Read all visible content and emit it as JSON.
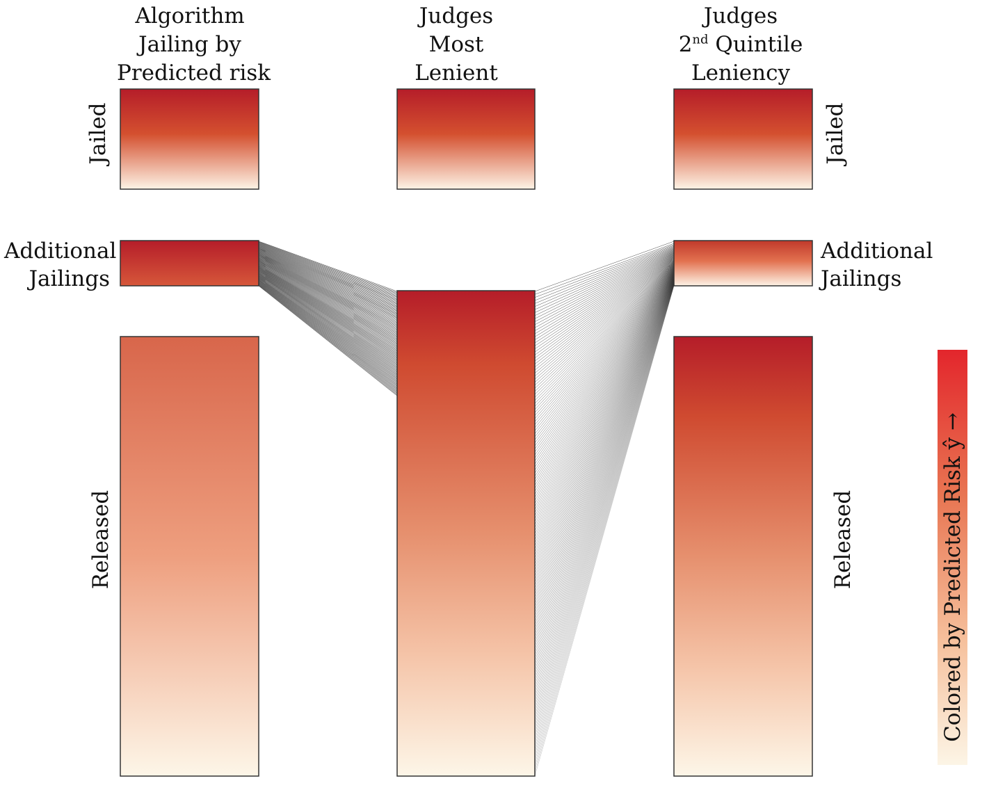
{
  "columns": [
    {
      "title_lines": [
        "Algorithm",
        "Jailing by",
        "Predicted risk"
      ]
    },
    {
      "title_lines": [
        "Judges",
        "Most",
        "Lenient"
      ]
    },
    {
      "title_main": "Judges",
      "title_ordinal": "2",
      "title_ordinal_suffix": "nd",
      "title_rest": "Quintile",
      "title_last": "Leniency"
    }
  ],
  "labels": {
    "jailed_left": "Jailed",
    "jailed_right": "Jailed",
    "additional_left_1": "Additional",
    "additional_left_2": "Jailings",
    "additional_right_1": "Additional",
    "additional_right_2": "Jailings",
    "released_left": "Released",
    "released_right": "Released"
  },
  "colorbar": {
    "label": "Colored by Predicted Risk ŷ →",
    "color_high": "#e3262c",
    "color_low": "#fcf5e6"
  },
  "colors": {
    "dark_red": "#b51d29",
    "mid_red": "#cf4a30",
    "salmon": "#e6906e",
    "peach": "#f5c4a8",
    "cream": "#fdf6e8",
    "link_lines": "#1a1a1a"
  }
}
